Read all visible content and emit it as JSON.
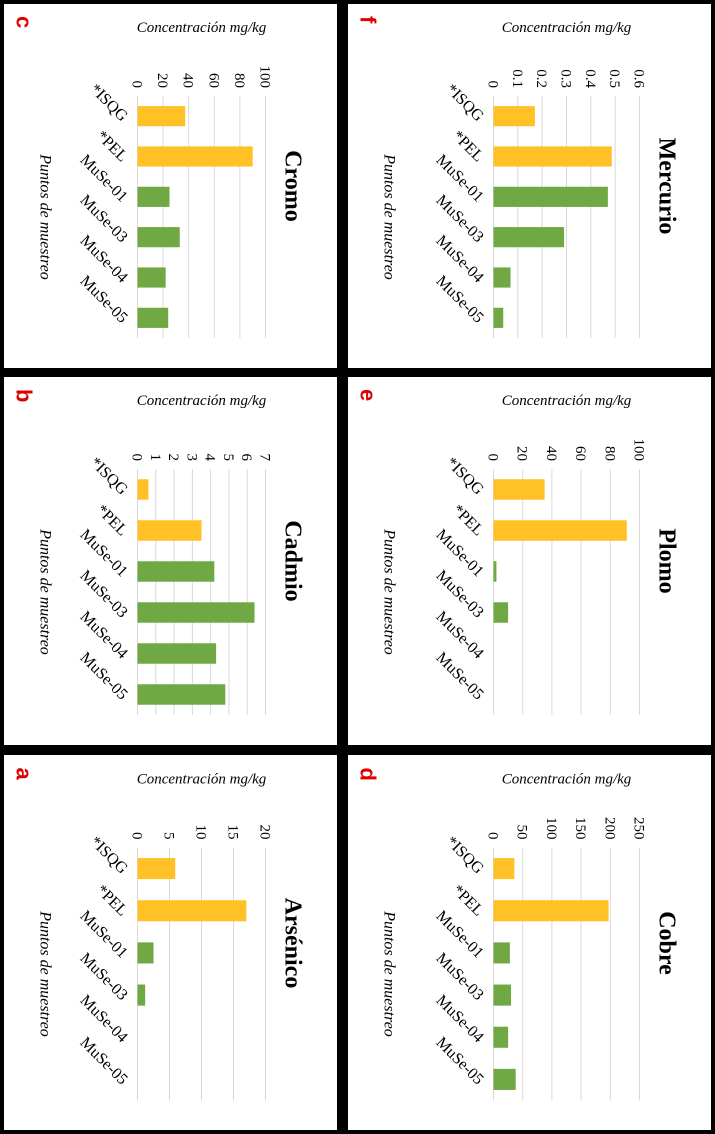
{
  "colors": {
    "reference": "#FFC125",
    "sample": "#70A844",
    "grid": "#D9D9D9",
    "letter": "#E00000"
  },
  "chart_data": [
    {
      "id": "a",
      "letter": "a",
      "type": "bar",
      "title": "Arsénico",
      "categories": [
        "*ISQG",
        "*PEL",
        "MuSe-01",
        "MuSe-03",
        "MuSe-04",
        "MuSe-05"
      ],
      "values": [
        5.9,
        17,
        2.5,
        1.2,
        0,
        0
      ],
      "kinds": [
        "ref",
        "ref",
        "sample",
        "sample",
        "sample",
        "sample"
      ],
      "ylim": [
        0,
        20
      ],
      "yticks": [
        "0",
        "5",
        "10",
        "15",
        "20"
      ],
      "ylabel": "Concentración mg/kg",
      "xlabel": "Puntos de muestreo"
    },
    {
      "id": "b",
      "letter": "b",
      "type": "bar",
      "title": "Cadmio",
      "categories": [
        "*ISQG",
        "*PEL",
        "MuSe-01",
        "MuSe-03",
        "MuSe-04",
        "MuSe-05"
      ],
      "values": [
        0.6,
        3.5,
        4.2,
        6.4,
        4.3,
        4.8
      ],
      "kinds": [
        "ref",
        "ref",
        "sample",
        "sample",
        "sample",
        "sample"
      ],
      "ylim": [
        0,
        7
      ],
      "yticks": [
        "0",
        "1",
        "2",
        "3",
        "4",
        "5",
        "6",
        "7"
      ],
      "ylabel": "Concentración mg/kg",
      "xlabel": "Puntos de muestreo"
    },
    {
      "id": "c",
      "letter": "c",
      "type": "bar",
      "title": "Cromo",
      "categories": [
        "*ISQG",
        "*PEL",
        "MuSe-01",
        "MuSe-03",
        "MuSe-04",
        "MuSe-05"
      ],
      "values": [
        37.3,
        90,
        25,
        33,
        22,
        24
      ],
      "kinds": [
        "ref",
        "ref",
        "sample",
        "sample",
        "sample",
        "sample"
      ],
      "ylim": [
        0,
        100
      ],
      "yticks": [
        "0",
        "20",
        "40",
        "60",
        "80",
        "100"
      ],
      "ylabel": "Concentración mg/kg",
      "xlabel": "Puntos de muestreo"
    },
    {
      "id": "d",
      "letter": "d",
      "type": "bar",
      "title": "Cobre",
      "categories": [
        "*ISQG",
        "*PEL",
        "MuSe-01",
        "MuSe-03",
        "MuSe-04",
        "MuSe-05"
      ],
      "values": [
        35.7,
        197,
        28,
        30,
        25,
        38
      ],
      "kinds": [
        "ref",
        "ref",
        "sample",
        "sample",
        "sample",
        "sample"
      ],
      "ylim": [
        0,
        250
      ],
      "yticks": [
        "0",
        "50",
        "100",
        "150",
        "200",
        "250"
      ],
      "ylabel": "Concentración mg/kg",
      "xlabel": "Puntos de muestreo"
    },
    {
      "id": "e",
      "letter": "e",
      "type": "bar",
      "title": "Plomo",
      "categories": [
        "*ISQG",
        "*PEL",
        "MuSe-01",
        "MuSe-03",
        "MuSe-04",
        "MuSe-05"
      ],
      "values": [
        35,
        91.3,
        2,
        10,
        0,
        0
      ],
      "kinds": [
        "ref",
        "ref",
        "sample",
        "sample",
        "sample",
        "sample"
      ],
      "ylim": [
        0,
        100
      ],
      "yticks": [
        "0",
        "20",
        "40",
        "60",
        "80",
        "100"
      ],
      "ylabel": "Concentración mg/kg",
      "xlabel": "Puntos de muestreo"
    },
    {
      "id": "f",
      "letter": "f",
      "type": "bar",
      "title": "Mercurio",
      "categories": [
        "*ISQG",
        "*PEL",
        "MuSe-01",
        "MuSe-03",
        "MuSe-04",
        "MuSe-05"
      ],
      "values": [
        0.17,
        0.486,
        0.47,
        0.29,
        0.07,
        0.04
      ],
      "kinds": [
        "ref",
        "ref",
        "sample",
        "sample",
        "sample",
        "sample"
      ],
      "ylim": [
        0,
        0.6
      ],
      "yticks": [
        "0",
        "0.1",
        "0.2",
        "0.3",
        "0.4",
        "0.5",
        "0.6"
      ],
      "ylabel": "Concentración mg/kg",
      "xlabel": "Puntos de muestreo"
    }
  ]
}
